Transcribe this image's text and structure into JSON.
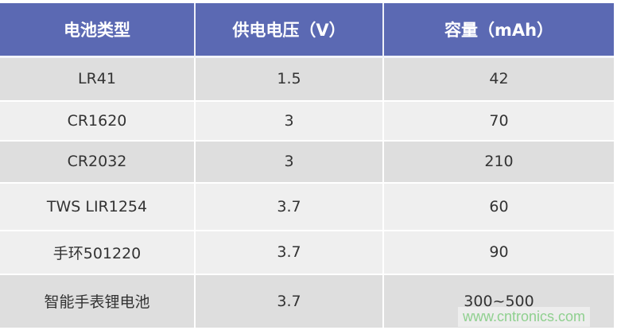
{
  "table": {
    "headers": [
      "电池类型",
      "供电电压（V）",
      "容量（mAh）"
    ],
    "rows": [
      [
        "LR41",
        "1.5",
        "42"
      ],
      [
        "CR1620",
        "3",
        "70"
      ],
      [
        "CR2032",
        "3",
        "210"
      ],
      [
        "TWS LIR1254",
        "3.7",
        "60"
      ],
      [
        "手环501220",
        "3.7",
        "90"
      ],
      [
        "智能手表锂电池",
        "3.7",
        "300~500"
      ]
    ]
  },
  "watermark": "www.cntronics.com",
  "colors": {
    "header": "#5b69b3",
    "row_dark": "#dedede",
    "row_light": "#efefef",
    "watermark": "#8fd08f"
  }
}
